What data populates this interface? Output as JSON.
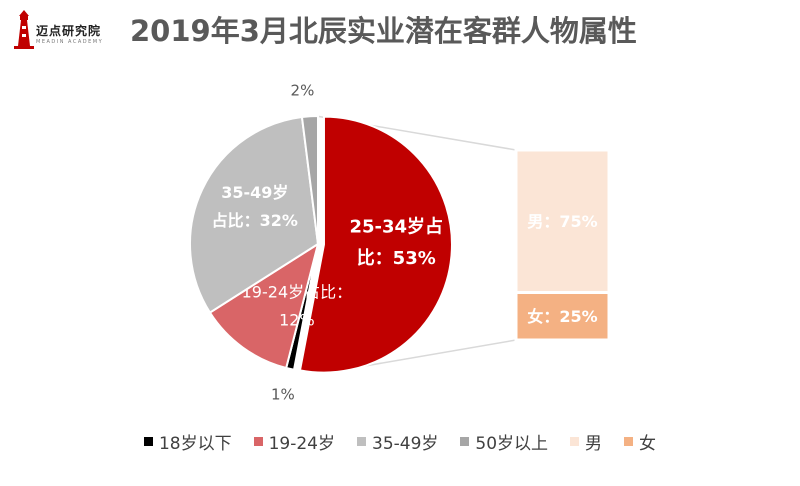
{
  "logo": {
    "text": "迈点研究院",
    "subtext": "MEADIN ACADEMY"
  },
  "title": "2019年3月北辰实业潜在客群人物属性",
  "colors": {
    "under18": "#000000",
    "age19_24": "#D96567",
    "age25_34": "#C00000",
    "age35_49": "#BFBFBF",
    "over50": "#A6A6A6",
    "male": "#FBE5D6",
    "female": "#F4B183",
    "connector": "#D9D9D9"
  },
  "chart_data": {
    "type": "pie",
    "title": "2019年3月北辰实业潜在客群人物属性",
    "subtype": "bar-of-pie",
    "pie": [
      {
        "key": "age25_34",
        "name": "25-34岁",
        "value": 53,
        "labels": [
          "25-34岁占",
          "比：53%"
        ],
        "label_pos": "inside"
      },
      {
        "key": "under18",
        "name": "18岁以下",
        "value": 1,
        "labels": [
          "1%"
        ],
        "label_pos": "outside-bottom"
      },
      {
        "key": "age19_24",
        "name": "19-24岁",
        "value": 12,
        "labels": [
          "19-24岁占比：",
          "12%"
        ],
        "label_pos": "inside"
      },
      {
        "key": "age35_49",
        "name": "35-49岁",
        "value": 32,
        "labels": [
          "35-49岁",
          "占比：32%"
        ],
        "label_pos": "inside"
      },
      {
        "key": "over50",
        "name": "50岁以上",
        "value": 2,
        "labels": [
          "2%"
        ],
        "label_pos": "outside-top"
      }
    ],
    "breakdown": [
      {
        "key": "male",
        "name": "男",
        "value": 75,
        "label": "男：75%"
      },
      {
        "key": "female",
        "name": "女",
        "value": 25,
        "label": "女：25%"
      }
    ],
    "legend": [
      "18岁以下",
      "19-24岁",
      "35-49岁",
      "50岁以上",
      "男",
      "女"
    ],
    "legend_keys": [
      "under18",
      "age19_24",
      "age35_49",
      "over50",
      "male",
      "female"
    ],
    "legend_position": "bottom"
  }
}
